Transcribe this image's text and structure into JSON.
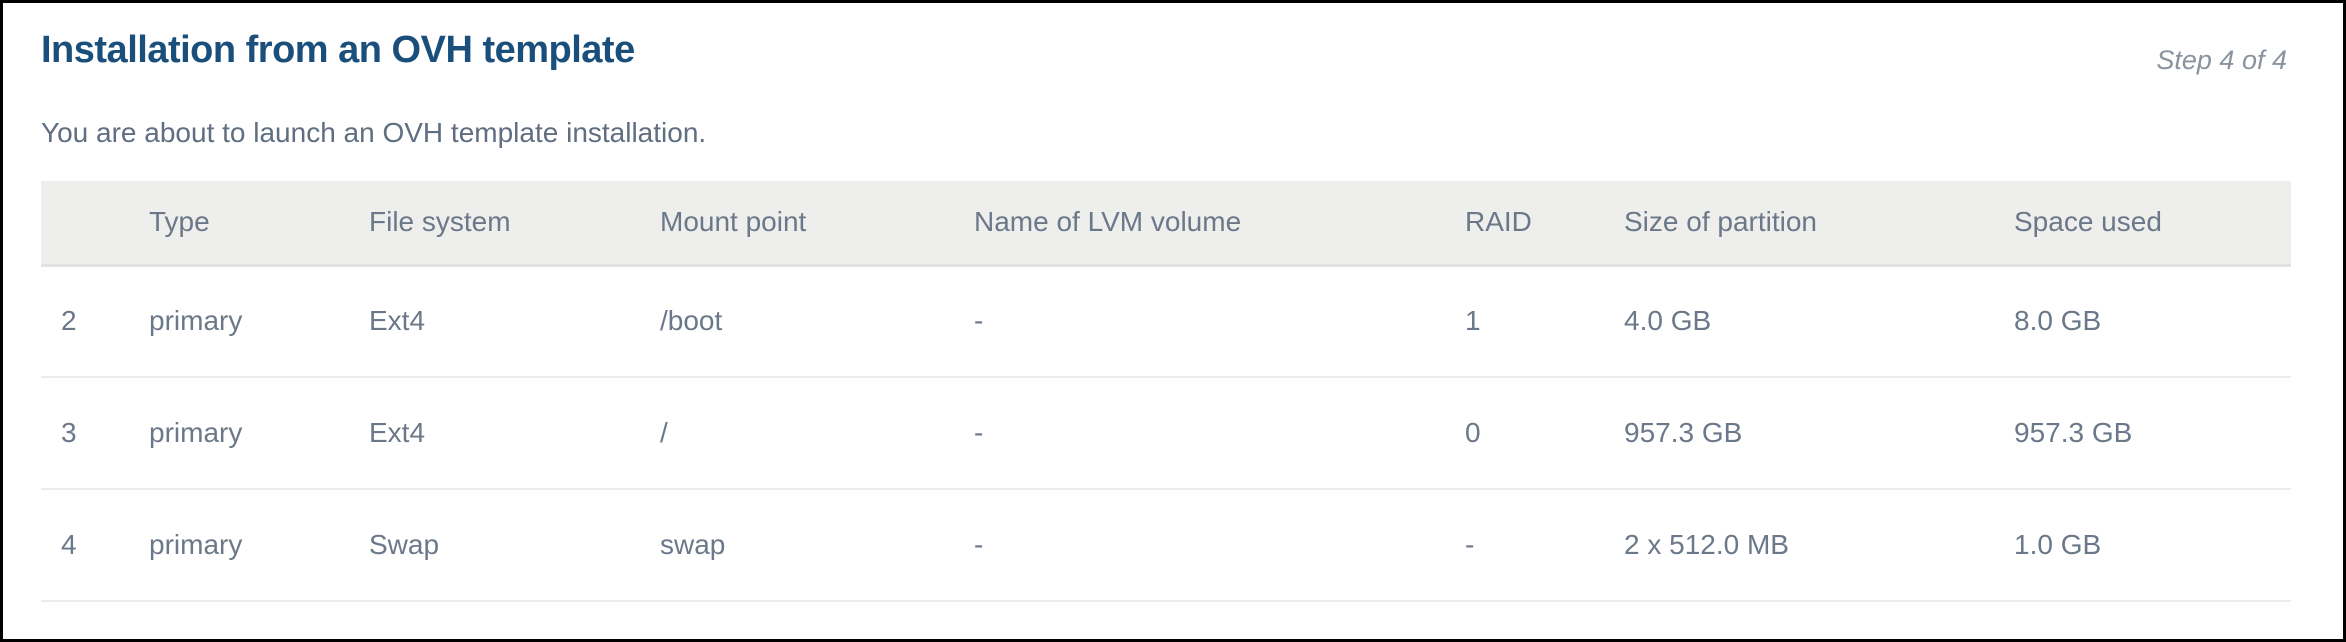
{
  "header": {
    "title": "Installation from an OVH template",
    "step": "Step 4 of 4"
  },
  "subtitle": "You are about to launch an OVH template installation.",
  "table": {
    "columns": [
      "",
      "Type",
      "File system",
      "Mount point",
      "Name of LVM volume",
      "RAID",
      "Size of partition",
      "Space used"
    ],
    "rows": [
      [
        "2",
        "primary",
        "Ext4",
        "/boot",
        "-",
        "1",
        "4.0 GB",
        "8.0 GB"
      ],
      [
        "3",
        "primary",
        "Ext4",
        "/",
        "-",
        "0",
        "957.3 GB",
        "957.3 GB"
      ],
      [
        "4",
        "primary",
        "Swap",
        "swap",
        "-",
        "-",
        "2 x 512.0 MB",
        "1.0 GB"
      ]
    ]
  }
}
